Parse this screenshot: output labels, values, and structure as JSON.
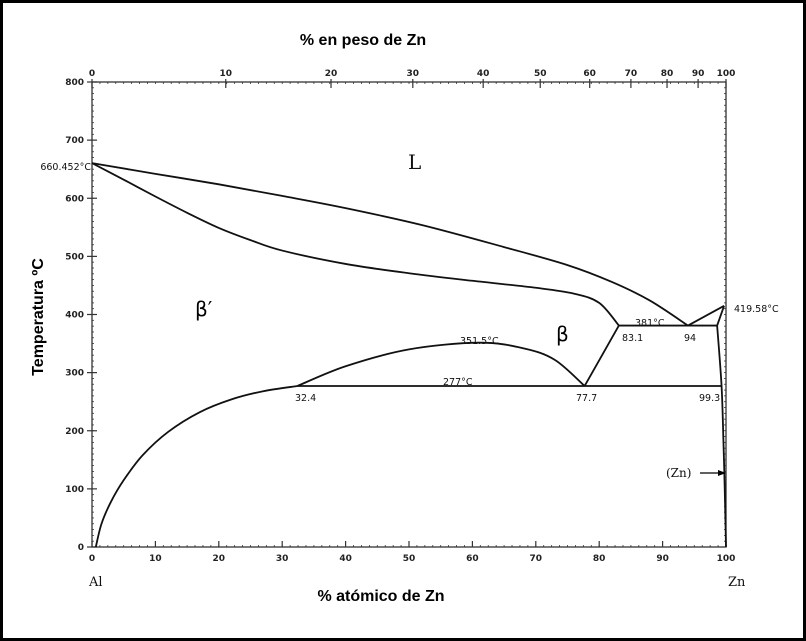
{
  "chart_data": {
    "type": "line",
    "title": "",
    "top_axis_label": "% en peso de Zn",
    "xlabel": "% atómico de  Zn",
    "ylabel": "Temperatura  ºC",
    "xlim": [
      0,
      100
    ],
    "ylim": [
      0,
      800
    ],
    "grid": false,
    "x_ticks": [
      "0",
      "10",
      "20",
      "30",
      "40",
      "50",
      "60",
      "70",
      "80",
      "90",
      "100"
    ],
    "y_ticks": [
      "0",
      "100",
      "200",
      "300",
      "400",
      "500",
      "600",
      "700",
      "800"
    ],
    "top_axis_ticks": [
      {
        "label": "0",
        "at_percent": 0
      },
      {
        "label": "10",
        "at_percent": 21.1
      },
      {
        "label": "20",
        "at_percent": 37.7
      },
      {
        "label": "30",
        "at_percent": 50.6
      },
      {
        "label": "40",
        "at_percent": 61.7
      },
      {
        "label": "50",
        "at_percent": 70.7
      },
      {
        "label": "60",
        "at_percent": 78.5
      },
      {
        "label": "70",
        "at_percent": 85.0
      },
      {
        "label": "80",
        "at_percent": 90.7
      },
      {
        "label": "90",
        "at_percent": 95.6
      },
      {
        "label": "100",
        "at_percent": 100
      }
    ],
    "end_labels": {
      "left": "Al",
      "right": "Zn"
    },
    "series": [
      {
        "points": [
          [
            0,
            660.452
          ],
          [
            10,
            642
          ],
          [
            20,
            624
          ],
          [
            30,
            604
          ],
          [
            40,
            583
          ],
          [
            52,
            554
          ],
          [
            65,
            516
          ],
          [
            75,
            485
          ],
          [
            82,
            456
          ],
          [
            88,
            424
          ],
          [
            94,
            381
          ]
        ]
      },
      {
        "points": [
          [
            0,
            660.452
          ],
          [
            5,
            632
          ],
          [
            10,
            603
          ],
          [
            15,
            575
          ],
          [
            20,
            549
          ],
          [
            25,
            528
          ],
          [
            30,
            510
          ],
          [
            40,
            487
          ],
          [
            50,
            471
          ],
          [
            60,
            458
          ],
          [
            70,
            446
          ],
          [
            76,
            436
          ],
          [
            80,
            420
          ],
          [
            83.1,
            381
          ]
        ]
      },
      {
        "points": [
          [
            94,
            381
          ],
          [
            99.7,
            415
          ]
        ]
      },
      {
        "points": [
          [
            83.1,
            381
          ],
          [
            98.6,
            381
          ]
        ]
      },
      {
        "points": [
          [
            98.6,
            381
          ],
          [
            99.7,
            415
          ]
        ]
      },
      {
        "points": [
          [
            98.6,
            381
          ],
          [
            99.3,
            277
          ],
          [
            99.6,
            180
          ],
          [
            99.8,
            100
          ],
          [
            100,
            0
          ]
        ]
      },
      {
        "points": [
          [
            32.4,
            277
          ],
          [
            40,
            311
          ],
          [
            50,
            340
          ],
          [
            61,
            351.5
          ],
          [
            68,
            342
          ],
          [
            73,
            322
          ],
          [
            77.7,
            277
          ]
        ]
      },
      {
        "points": [
          [
            77.7,
            277
          ],
          [
            83.1,
            381
          ]
        ]
      },
      {
        "points": [
          [
            32.4,
            277
          ],
          [
            99.3,
            277
          ]
        ]
      },
      {
        "points": [
          [
            0.6,
            0
          ],
          [
            1.5,
            40
          ],
          [
            3,
            78
          ],
          [
            5,
            115
          ],
          [
            8,
            158
          ],
          [
            12,
            198
          ],
          [
            17,
            232
          ],
          [
            22,
            254
          ],
          [
            27,
            268
          ],
          [
            32.4,
            277
          ]
        ]
      }
    ],
    "annotations": {
      "al_melting": "660.452°C",
      "zn_melting": "419.58°C",
      "eutectic_temp": "381°C",
      "eutectic_comp": "94",
      "monotectoid_comp": "83.1",
      "critical_point": "351.5°C",
      "eutectoid_temp": "277°C",
      "eutectoid_left": "32.4",
      "eutectoid_mid": "77.7",
      "eutectoid_right": "99.3",
      "zn_phase": "(Zn)"
    },
    "phases": {
      "liquid": "L",
      "beta_prime": "β′",
      "beta": "β"
    }
  }
}
